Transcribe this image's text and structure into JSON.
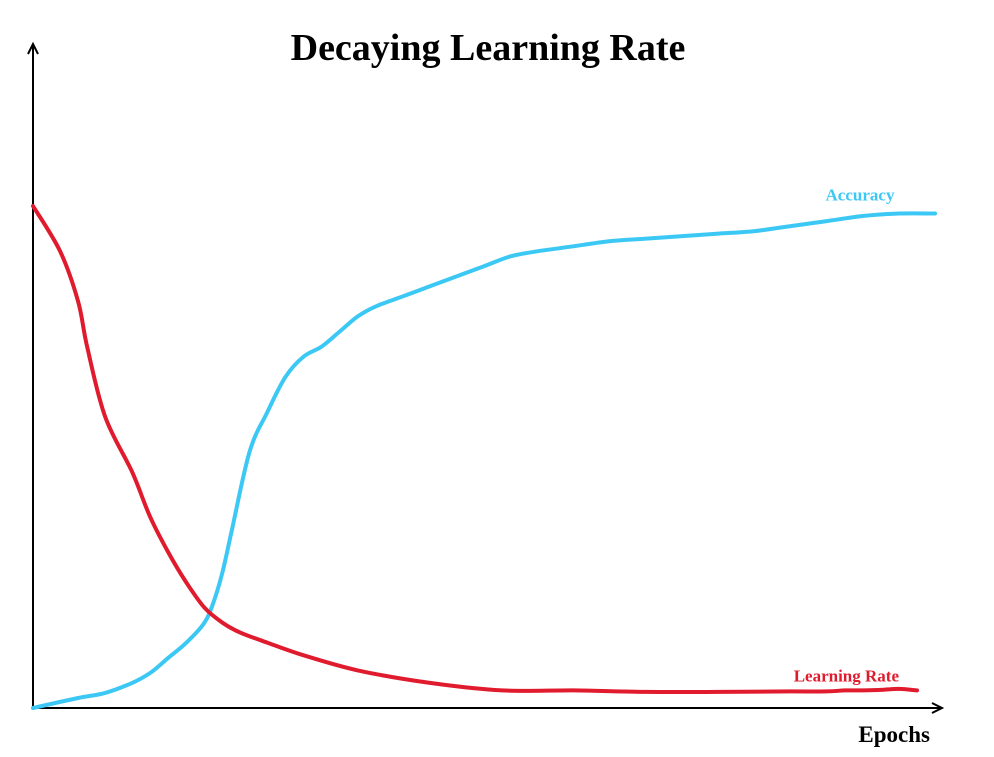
{
  "chart_data": {
    "type": "line",
    "title": "Decaying Learning Rate",
    "xlabel": "Epochs",
    "ylabel": "",
    "xlim": [
      0,
      100
    ],
    "ylim": [
      0,
      100
    ],
    "grid": false,
    "legend": "labels placed at the right end of each line",
    "series": [
      {
        "name": "Accuracy",
        "color": "#3cc8f4",
        "x": [
          0,
          5,
          8,
          11,
          13,
          15,
          17,
          19,
          20,
          21,
          22,
          24,
          26,
          28,
          30,
          32,
          34,
          36,
          38,
          41,
          44,
          47,
          50,
          53,
          56,
          58,
          60,
          64,
          68,
          72,
          76,
          80,
          84,
          88,
          92,
          96,
          100
        ],
        "y": [
          0,
          2,
          3,
          5,
          7,
          10,
          13,
          17,
          21,
          27,
          35,
          51,
          59,
          66,
          70,
          72,
          75,
          78,
          80,
          82,
          84,
          86,
          88,
          90,
          91,
          91.5,
          92,
          93,
          93.5,
          94,
          94.5,
          95,
          96,
          97,
          98,
          98.5,
          98.5
        ]
      },
      {
        "name": "Learning Rate",
        "color": "#e11b2e",
        "x": [
          0,
          3,
          5,
          6,
          8,
          11,
          13,
          15,
          17,
          19,
          21,
          23,
          26,
          30,
          36,
          44,
          52,
          60,
          68,
          76,
          84,
          88,
          90,
          92,
          94,
          96,
          98
        ],
        "y": [
          100,
          91,
          81,
          72,
          58,
          47,
          38,
          31,
          25,
          20,
          17,
          15,
          13,
          10.5,
          7.5,
          5,
          3.5,
          3.5,
          3.2,
          3.2,
          3.3,
          3.3,
          3.5,
          3.5,
          3.6,
          3.8,
          3.5
        ]
      }
    ]
  }
}
